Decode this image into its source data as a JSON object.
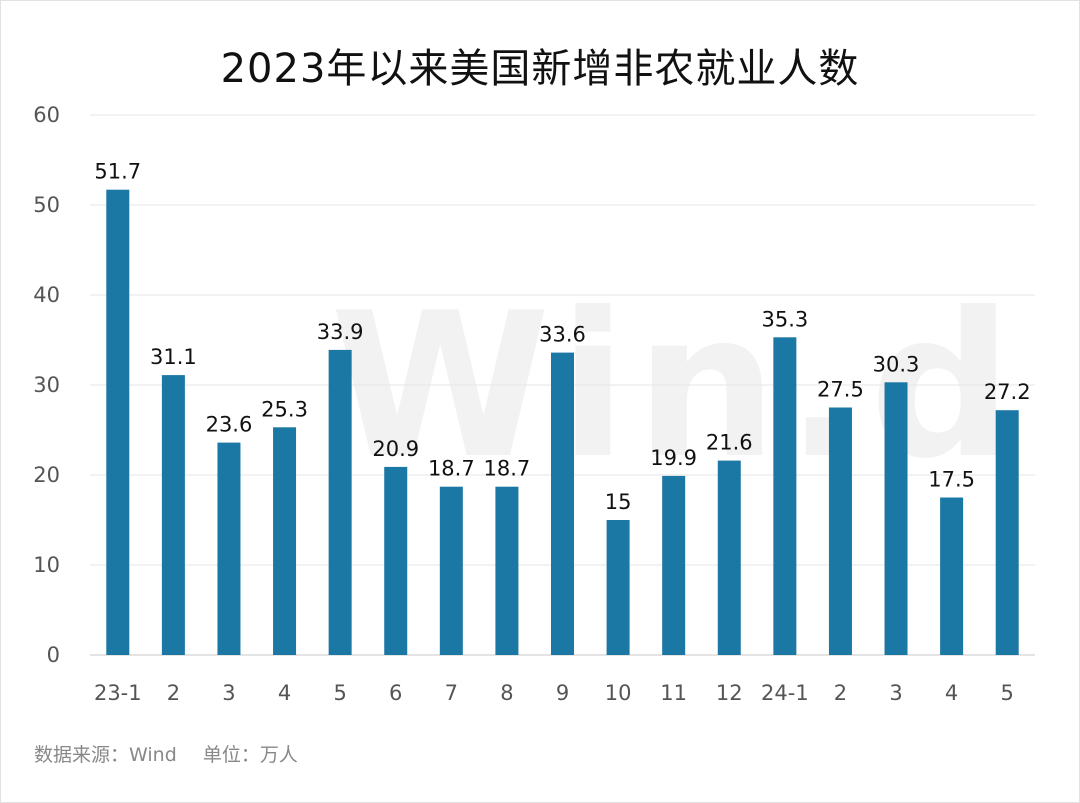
{
  "chart_data": {
    "type": "bar",
    "title": "2023年以来美国新增非农就业人数",
    "categories": [
      "23-1",
      "2",
      "3",
      "4",
      "5",
      "6",
      "7",
      "8",
      "9",
      "10",
      "11",
      "12",
      "24-1",
      "2",
      "3",
      "4",
      "5"
    ],
    "values": [
      51.7,
      31.1,
      23.6,
      25.3,
      33.9,
      20.9,
      18.7,
      18.7,
      33.6,
      15,
      19.9,
      21.6,
      35.3,
      27.5,
      30.3,
      17.5,
      27.2
    ],
    "value_labels": [
      "51.7",
      "31.1",
      "23.6",
      "25.3",
      "33.9",
      "20.9",
      "18.7",
      "18.7",
      "33.6",
      "15",
      "19.9",
      "21.6",
      "35.3",
      "27.5",
      "30.3",
      "17.5",
      "27.2"
    ],
    "ylim": [
      0,
      60
    ],
    "yticks": [
      "0",
      "10",
      "20",
      "30",
      "40",
      "50",
      "60"
    ],
    "xlabel": "",
    "ylabel": "",
    "grid": true,
    "bar_color": "#1b77a3",
    "gridline_color": "#e6e6e6"
  },
  "watermark": "Win.d",
  "footer": {
    "source": "数据来源：Wind",
    "unit": "单位：万人"
  }
}
